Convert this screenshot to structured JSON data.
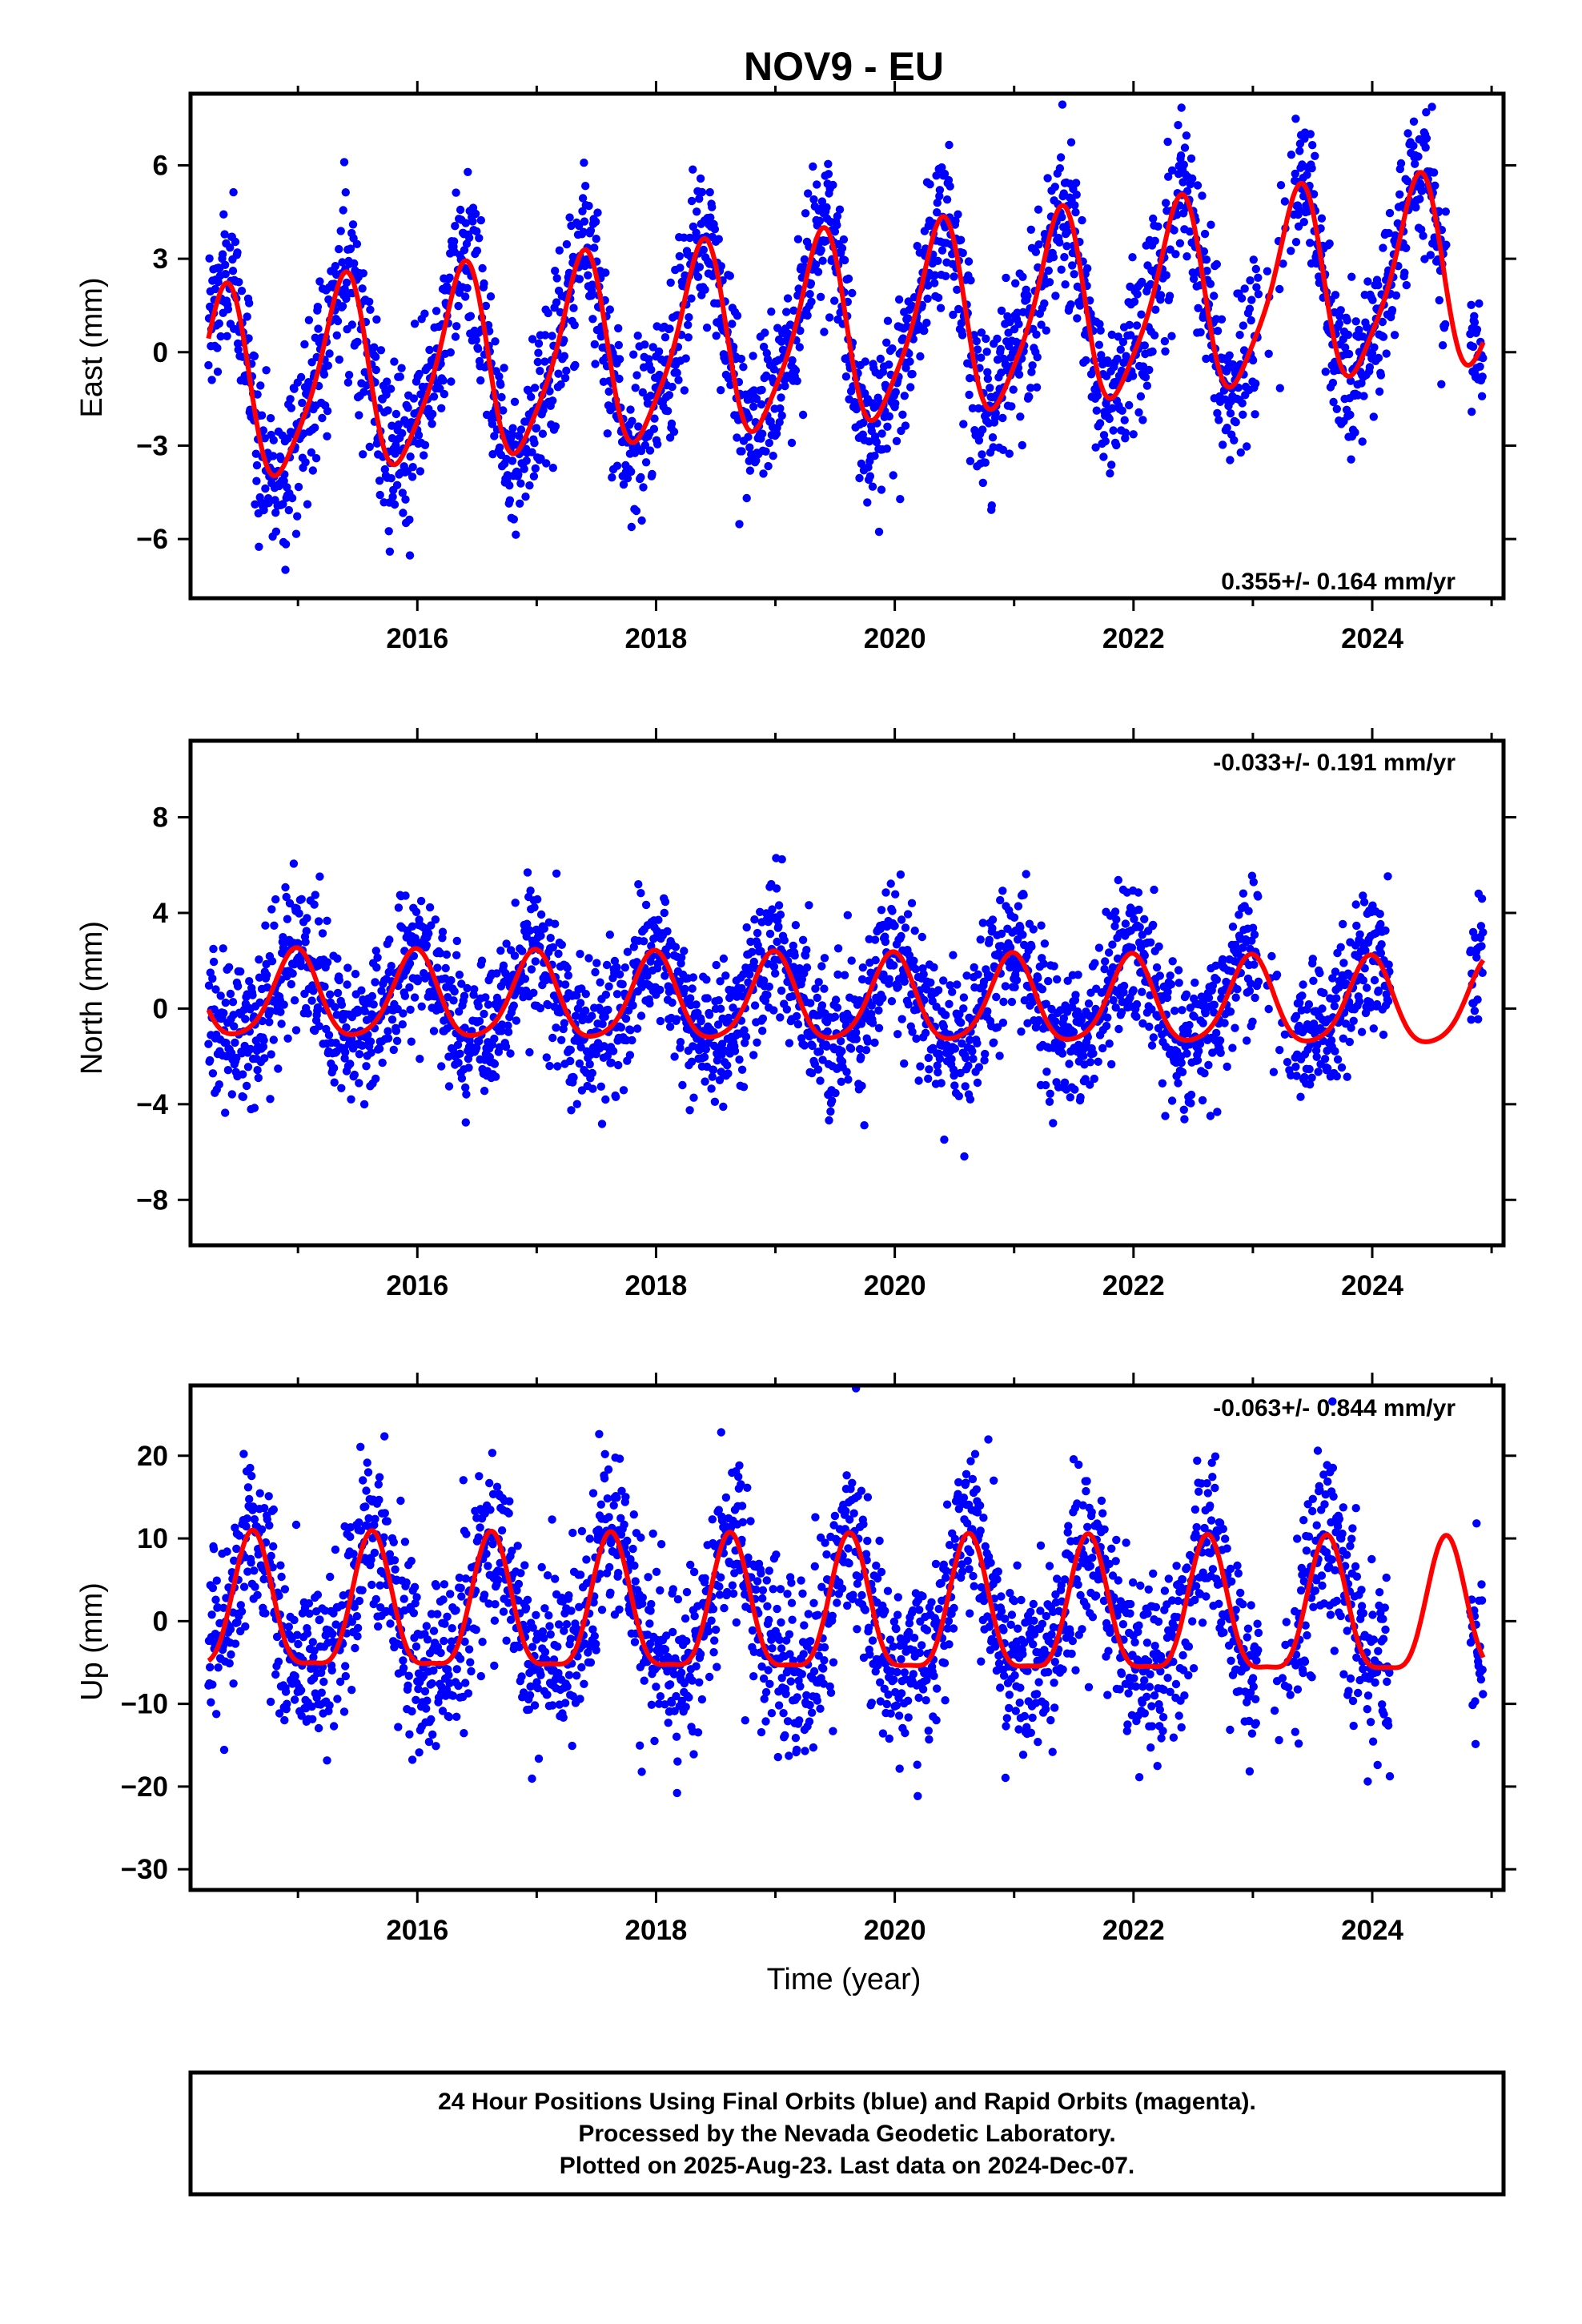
{
  "title": "NOV9 - EU",
  "xlabel": "Time (year)",
  "colors": {
    "data": "#0000ff",
    "model": "#ff0000",
    "frame": "#000000"
  },
  "footer": [
    "24 Hour Positions Using Final Orbits (blue) and Rapid Orbits (magenta).",
    "Processed by the Nevada Geodetic Laboratory.",
    "Plotted on 2025-Aug-23. Last data on 2024-Dec-07."
  ],
  "chart_data": [
    {
      "type": "scatter",
      "panel": "east",
      "ylabel": "East (mm)",
      "rate": "0.355+/- 0.164 mm/yr",
      "xlim": [
        2014.1,
        2025.1
      ],
      "ylim": [
        -7.9,
        8.3
      ],
      "xticks": [
        2016,
        2018,
        2020,
        2022,
        2024
      ],
      "xtick_labels": [
        "2016",
        "2018",
        "2020",
        "2022",
        "2024"
      ],
      "yticks": [
        -6,
        -3,
        0,
        3,
        6
      ],
      "ytick_labels": [
        "−6",
        "−3",
        "0",
        "3",
        "6"
      ],
      "data_span": [
        2014.25,
        2024.93
      ],
      "gaps": [
        [
          2023.05,
          2023.12
        ],
        [
          2024.62,
          2024.82
        ]
      ],
      "model": {
        "trend": 0.355,
        "t0": 2019.5,
        "offset": 0.6,
        "annual_amp": 3.0,
        "annual_phase_peak": 2019.37,
        "semiannual_amp": 0.6,
        "semiannual_phase_peak": 2019.45
      },
      "scatter_std": 1.3
    },
    {
      "type": "scatter",
      "panel": "north",
      "ylabel": "North (mm)",
      "rate": "-0.033+/- 0.191 mm/yr",
      "xlim": [
        2014.1,
        2025.1
      ],
      "ylim": [
        -9.9,
        11.2
      ],
      "xticks": [
        2016,
        2018,
        2020,
        2022,
        2024
      ],
      "xtick_labels": [
        "2016",
        "2018",
        "2020",
        "2022",
        "2024"
      ],
      "yticks": [
        -8,
        -4,
        0,
        4,
        8
      ],
      "ytick_labels": [
        "−8",
        "−4",
        "0",
        "4",
        "8"
      ],
      "data_span": [
        2014.25,
        2024.93
      ],
      "gaps": [
        [
          2023.05,
          2023.12
        ],
        [
          2024.15,
          2024.82
        ]
      ],
      "model": {
        "trend": -0.033,
        "t0": 2019.5,
        "offset": 0.3,
        "annual_amp": 1.8,
        "annual_phase_peak": 2019.98,
        "semiannual_amp": 0.3,
        "semiannual_phase_peak": 2019.5
      },
      "scatter_std": 1.5
    },
    {
      "type": "scatter",
      "panel": "up",
      "ylabel": "Up (mm)",
      "rate": "-0.063+/- 0.844 mm/yr",
      "xlim": [
        2014.1,
        2025.1
      ],
      "ylim": [
        -32.5,
        28.5
      ],
      "xticks": [
        2016,
        2018,
        2020,
        2022,
        2024
      ],
      "xtick_labels": [
        "2016",
        "2018",
        "2020",
        "2022",
        "2024"
      ],
      "yticks": [
        -30,
        -20,
        -10,
        0,
        10,
        20
      ],
      "ytick_labels": [
        "−30",
        "−20",
        "−10",
        "0",
        "10",
        "20"
      ],
      "data_span": [
        2014.25,
        2024.93
      ],
      "gaps": [
        [
          2023.05,
          2023.12
        ],
        [
          2024.15,
          2024.82
        ]
      ],
      "model": {
        "trend": -0.063,
        "t0": 2019.5,
        "offset": 0.5,
        "annual_amp": 8.0,
        "annual_phase_peak": 2019.62,
        "semiannual_amp": 2.2,
        "semiannual_phase_peak": 2019.62
      },
      "scatter_std": 5.5
    }
  ]
}
